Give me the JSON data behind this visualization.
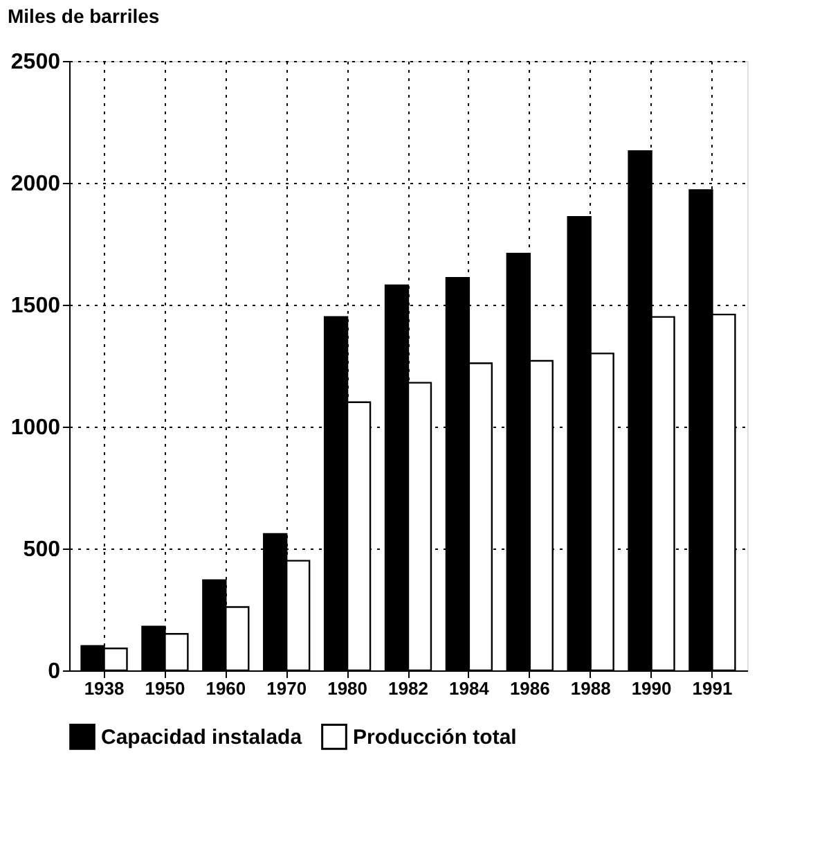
{
  "chart_data": {
    "type": "bar",
    "ylabel": "Miles de barriles",
    "categories": [
      "1938",
      "1950",
      "1960",
      "1970",
      "1980",
      "1982",
      "1984",
      "1986",
      "1988",
      "1990",
      "1991"
    ],
    "series": [
      {
        "name": "Capacidad instalada",
        "color": "#000000",
        "values": [
          100,
          180,
          370,
          560,
          1450,
          1580,
          1610,
          1710,
          1860,
          2130,
          1970
        ]
      },
      {
        "name": "Producción total",
        "color": "#ffffff",
        "values": [
          90,
          150,
          260,
          450,
          1100,
          1180,
          1260,
          1270,
          1300,
          1450,
          1460
        ]
      }
    ],
    "ylim": [
      0,
      2500
    ],
    "yticks": [
      0,
      500,
      1000,
      1500,
      2000,
      2500
    ],
    "grid": true,
    "legend": "bottom"
  }
}
